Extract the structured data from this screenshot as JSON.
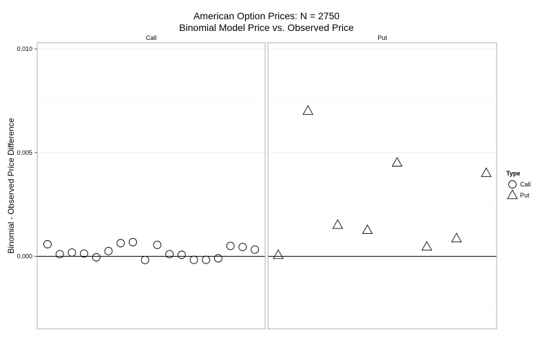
{
  "chart_data": {
    "type": "scatter",
    "title": "American Option Prices: N = 2750",
    "subtitle": "Binomial Model Price vs. Observed Price",
    "xlabel": "",
    "ylabel": "Binomial - Observed Price Difference",
    "ylim": [
      -0.0035,
      0.0103
    ],
    "y_ticks": [
      {
        "value": 0.0,
        "label": "0.000"
      },
      {
        "value": 0.005,
        "label": "0.005"
      },
      {
        "value": 0.01,
        "label": "0.010"
      }
    ],
    "y_minor_ticks": [
      -0.0025,
      0.0025,
      0.0075
    ],
    "grid": true,
    "hline": 0,
    "legend": {
      "title": "Type",
      "position": "right",
      "items": [
        {
          "label": "Call",
          "shape": "circle"
        },
        {
          "label": "Put",
          "shape": "triangle"
        }
      ]
    },
    "panels": [
      {
        "strip": "Call",
        "shape": "circle",
        "values": [
          0.00058,
          0.0001,
          0.00018,
          0.00013,
          -5e-05,
          0.00025,
          0.00063,
          0.00068,
          -0.00018,
          0.00055,
          0.0001,
          7e-05,
          -0.00017,
          -0.00017,
          -0.0001,
          0.0005,
          0.00045,
          0.00032
        ]
      },
      {
        "strip": "Put",
        "shape": "triangle",
        "values": [
          5e-05,
          0.007,
          0.0015,
          0.00125,
          0.0045,
          0.00045,
          0.00085,
          0.004
        ]
      }
    ]
  }
}
